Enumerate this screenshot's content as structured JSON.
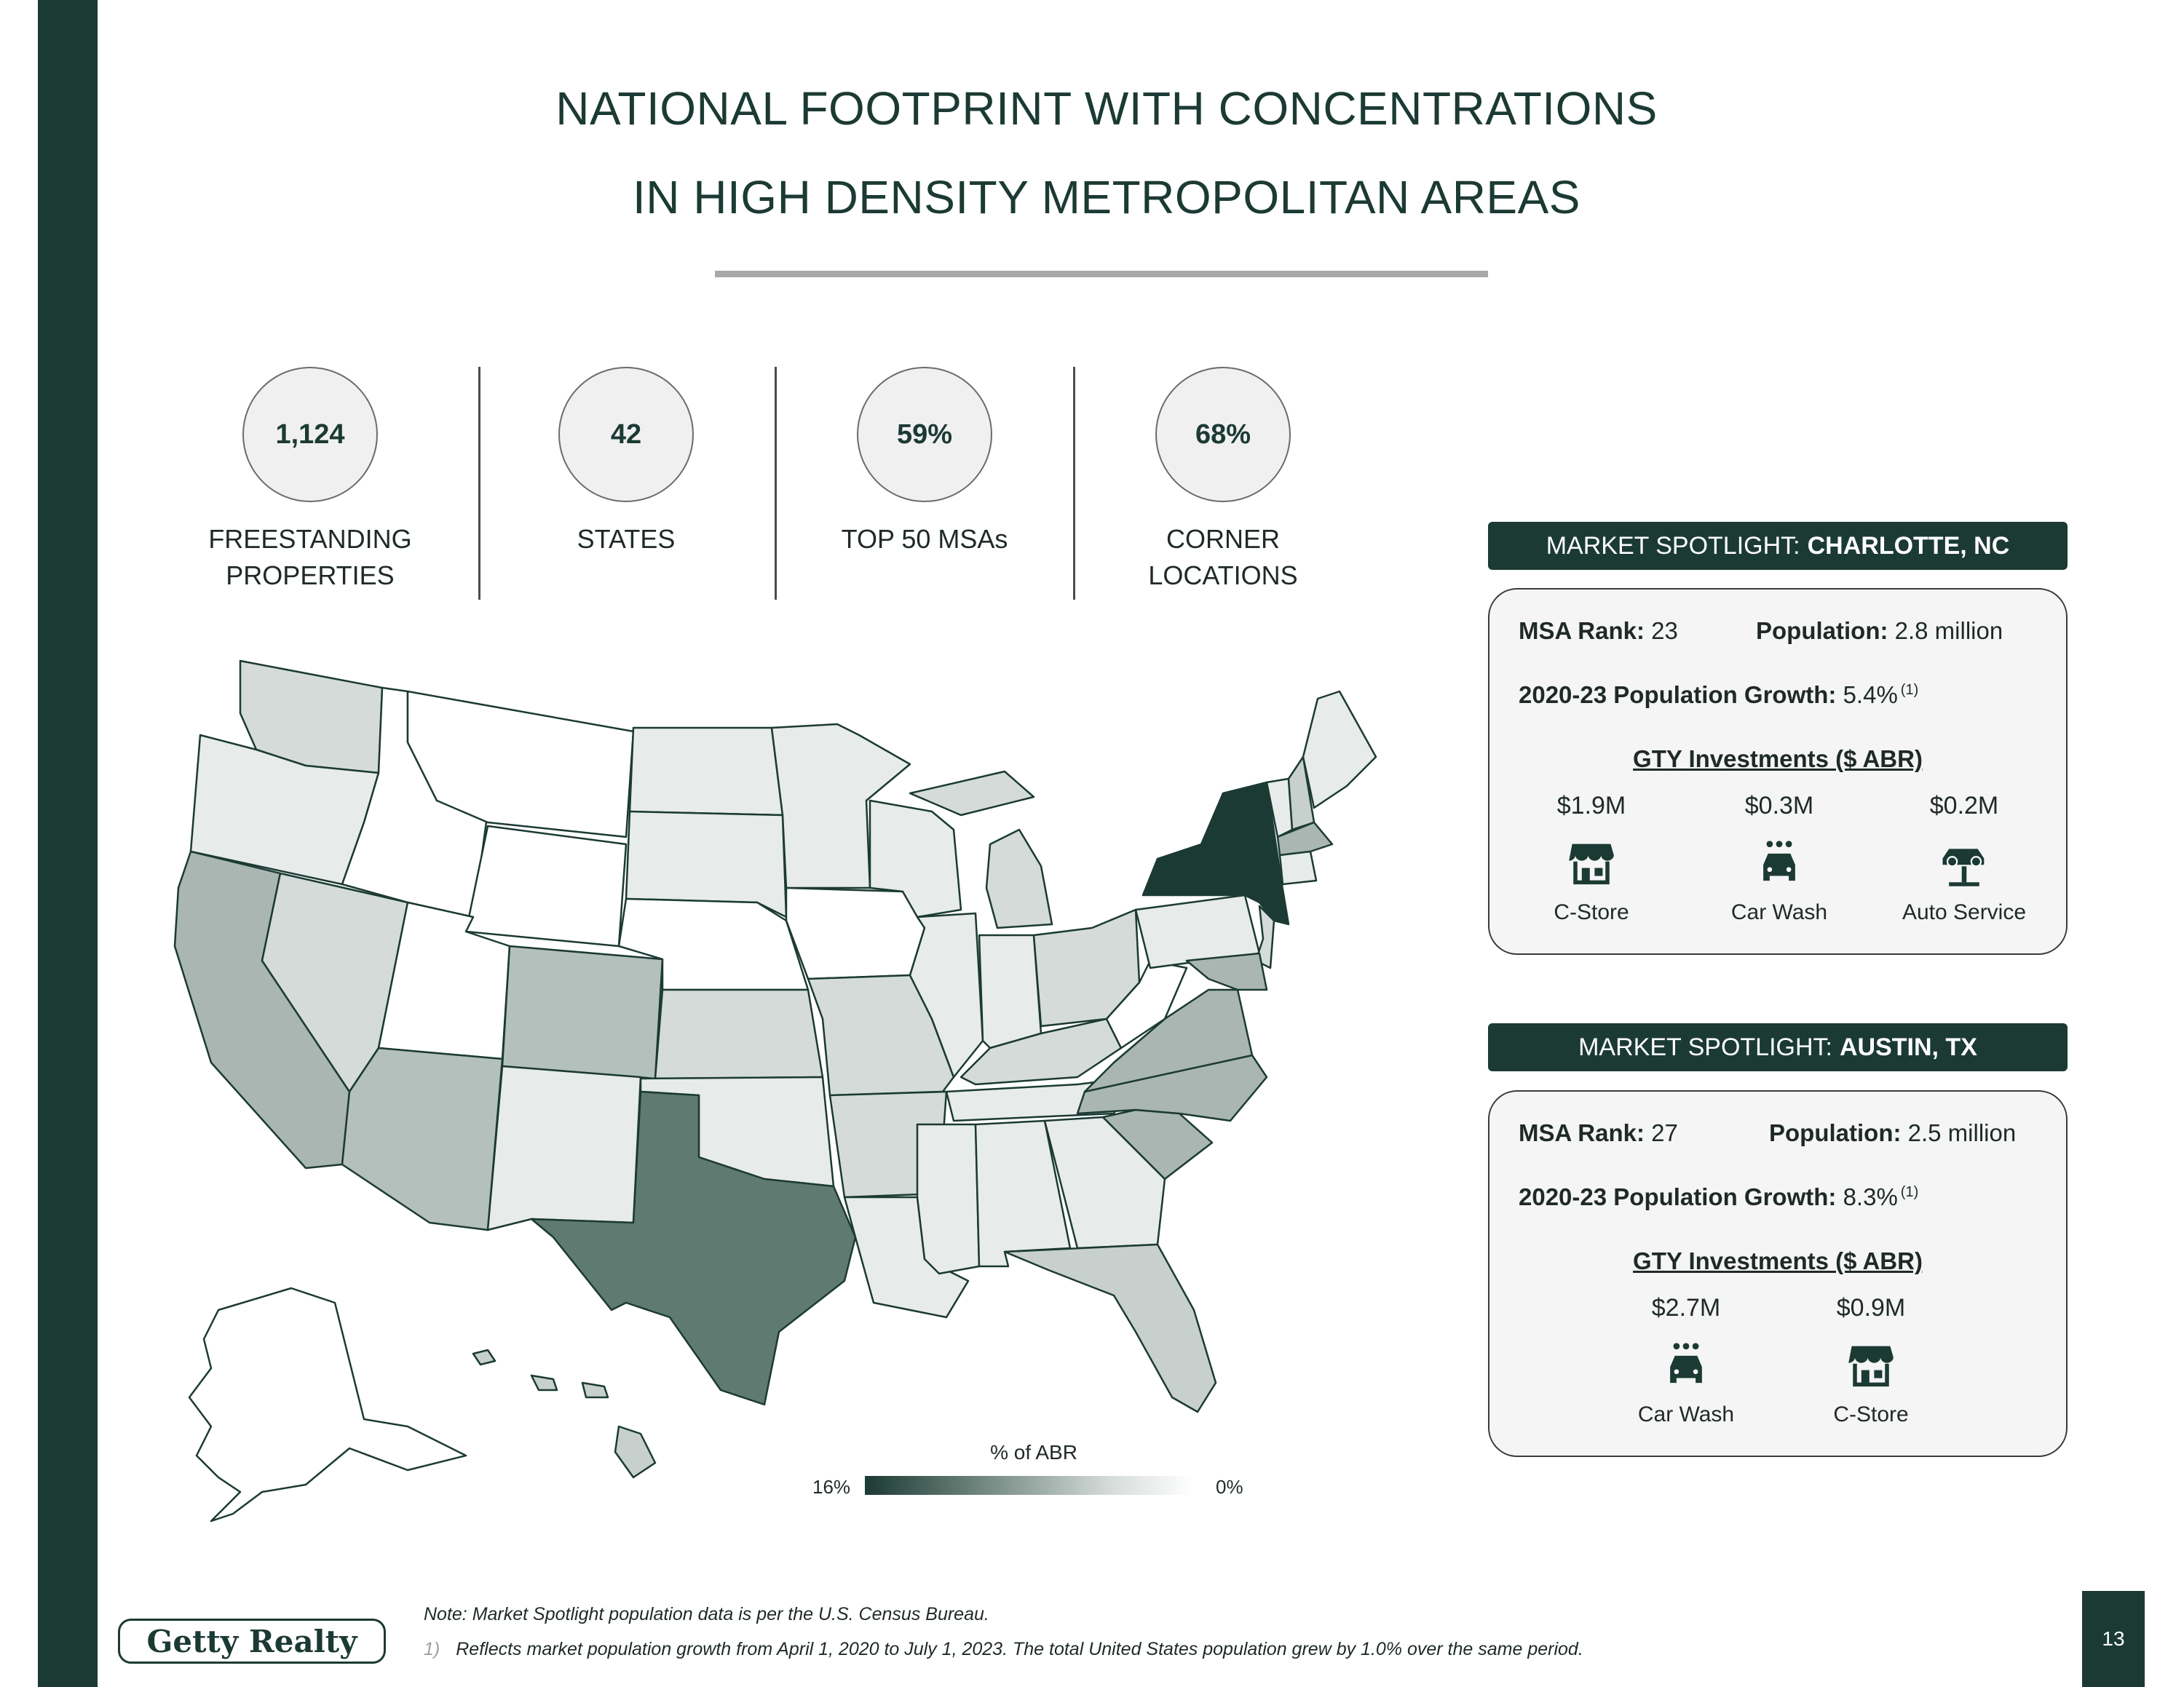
{
  "title": {
    "line1": "NATIONAL FOOTPRINT WITH CONCENTRATIONS",
    "line2": "IN HIGH DENSITY METROPOLITAN AREAS"
  },
  "stats": [
    {
      "value": "1,124",
      "label_line1": "FREESTANDING",
      "label_line2": "PROPERTIES"
    },
    {
      "value": "42",
      "label_line1": "STATES",
      "label_line2": ""
    },
    {
      "value": "59%",
      "label_line1": "TOP 50 MSAs",
      "label_line2": ""
    },
    {
      "value": "68%",
      "label_line1": "CORNER",
      "label_line2": "LOCATIONS"
    }
  ],
  "map": {
    "legend_title": "% of ABR",
    "legend_high": "16%",
    "legend_low": "0%",
    "colors": {
      "highest": "#1b3a33",
      "high": "#5f7a71",
      "mid": "#a9b6b1",
      "low": "#d4dbd8",
      "lowest": "#e7ebe9",
      "none": "#ffffff"
    }
  },
  "spotlights": [
    {
      "prefix": "MARKET SPOTLIGHT:",
      "market": "CHARLOTTE, NC",
      "msa_rank_label": "MSA Rank:",
      "msa_rank": "23",
      "population_label": "Population:",
      "population": "2.8 million",
      "growth_label": "2020-23 Population Growth:",
      "growth": "5.4%",
      "growth_note": "(1)",
      "investments_title": "GTY Investments ($ ABR)",
      "investments": [
        {
          "amount": "$1.9M",
          "name": "C-Store",
          "icon": "store-icon"
        },
        {
          "amount": "$0.3M",
          "name": "Car Wash",
          "icon": "car-wash-icon"
        },
        {
          "amount": "$0.2M",
          "name": "Auto Service",
          "icon": "auto-service-icon"
        }
      ]
    },
    {
      "prefix": "MARKET SPOTLIGHT:",
      "market": "AUSTIN, TX",
      "msa_rank_label": "MSA Rank:",
      "msa_rank": "27",
      "population_label": "Population:",
      "population": "2.5 million",
      "growth_label": "2020-23 Population Growth:",
      "growth": "8.3%",
      "growth_note": "(1)",
      "investments_title": "GTY Investments ($ ABR)",
      "investments": [
        {
          "amount": "$2.7M",
          "name": "Car Wash",
          "icon": "car-wash-icon"
        },
        {
          "amount": "$0.9M",
          "name": "C-Store",
          "icon": "store-icon"
        }
      ]
    }
  ],
  "footnotes": {
    "note": "Note: Market Spotlight population data is per the U.S. Census Bureau.",
    "num1": "1)",
    "text1": "Reflects market population growth from April 1, 2020 to July 1, 2023.  The total United States population grew by 1.0% over the same period."
  },
  "logo_text": "Getty Realty",
  "page_number": "13"
}
